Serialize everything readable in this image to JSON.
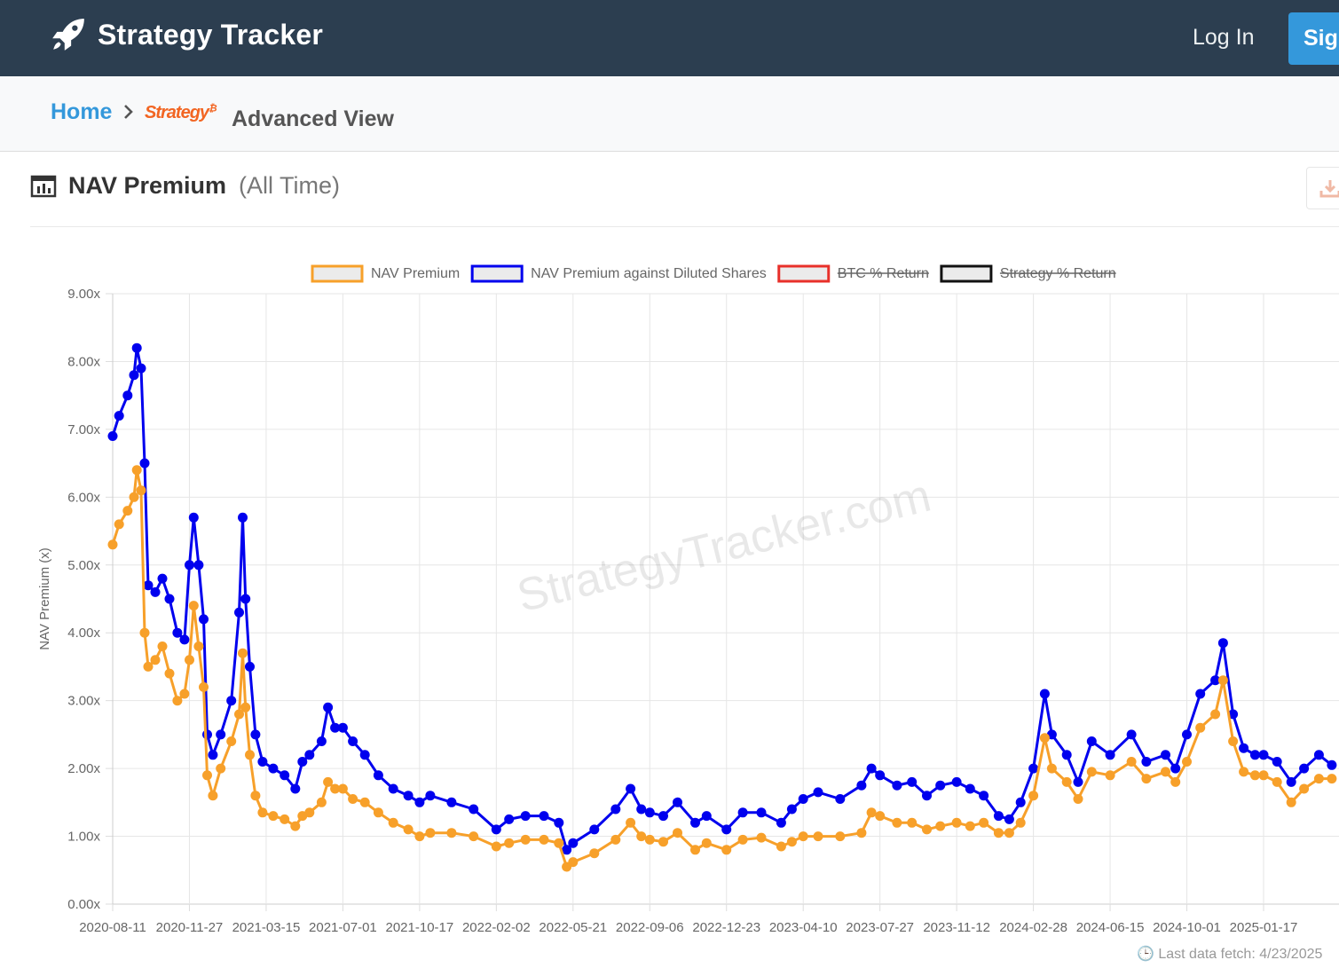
{
  "app": {
    "title": "Strategy Tracker",
    "logo_icon": "rocket-icon"
  },
  "nav": {
    "login_label": "Log In",
    "signup_label": "Sig"
  },
  "breadcrumb": {
    "home": "Home",
    "separator_icon": "chevron-right-icon",
    "logo_text": "Strategy",
    "logo_sup": "₿",
    "current": "Advanced View"
  },
  "card": {
    "title": "NAV Premium",
    "subtitle": "(All Time)",
    "title_icon": "bar-chart-icon",
    "export_icon": "download-icon"
  },
  "footer": {
    "last_fetch": "🕒 Last data fetch: 4/23/2025"
  },
  "colors": {
    "navbar": "#2c3e50",
    "accent": "#3498db",
    "nav": "#f7a02a",
    "diluted": "#0000ee",
    "btc": "#e8302a",
    "strategy": "#111111"
  },
  "chart_data": {
    "type": "line",
    "ylabel": "NAV Premium (x)",
    "ylim": [
      0,
      9
    ],
    "yticks": [
      "0.00x",
      "1.00x",
      "2.00x",
      "3.00x",
      "4.00x",
      "5.00x",
      "6.00x",
      "7.00x",
      "8.00x",
      "9.00x"
    ],
    "xticks": [
      "2020-08-11",
      "2020-11-27",
      "2021-03-15",
      "2021-07-01",
      "2021-10-17",
      "2022-02-02",
      "2022-05-21",
      "2022-09-06",
      "2022-12-23",
      "2023-04-10",
      "2023-07-27",
      "2023-11-12",
      "2024-02-28",
      "2024-06-15",
      "2024-10-01",
      "2025-01-17"
    ],
    "xrange": [
      "2020-08-11",
      "2025-04-23"
    ],
    "grid": true,
    "legend_position": "top",
    "watermark": "StrategyTracker.com",
    "legend": [
      {
        "name": "NAV Premium",
        "color": "#f7a02a",
        "hidden": false
      },
      {
        "name": "NAV Premium against Diluted Shares",
        "color": "#0000ee",
        "hidden": false
      },
      {
        "name": "BTC % Return",
        "color": "#e8302a",
        "hidden": true
      },
      {
        "name": "Strategy % Return",
        "color": "#111111",
        "hidden": true
      }
    ],
    "series": [
      {
        "name": "NAV Premium against Diluted Shares",
        "color": "#0000ee",
        "points": [
          [
            "2020-08-11",
            6.9
          ],
          [
            "2020-08-20",
            7.2
          ],
          [
            "2020-09-01",
            7.5
          ],
          [
            "2020-09-10",
            7.8
          ],
          [
            "2020-09-14",
            8.2
          ],
          [
            "2020-09-20",
            7.9
          ],
          [
            "2020-09-25",
            6.5
          ],
          [
            "2020-09-30",
            4.7
          ],
          [
            "2020-10-10",
            4.6
          ],
          [
            "2020-10-20",
            4.8
          ],
          [
            "2020-10-30",
            4.5
          ],
          [
            "2020-11-10",
            4.0
          ],
          [
            "2020-11-20",
            3.9
          ],
          [
            "2020-11-27",
            5.0
          ],
          [
            "2020-12-03",
            5.7
          ],
          [
            "2020-12-10",
            5.0
          ],
          [
            "2020-12-17",
            4.2
          ],
          [
            "2020-12-22",
            2.5
          ],
          [
            "2020-12-30",
            2.2
          ],
          [
            "2021-01-10",
            2.5
          ],
          [
            "2021-01-25",
            3.0
          ],
          [
            "2021-02-05",
            4.3
          ],
          [
            "2021-02-10",
            5.7
          ],
          [
            "2021-02-14",
            4.5
          ],
          [
            "2021-02-20",
            3.5
          ],
          [
            "2021-02-28",
            2.5
          ],
          [
            "2021-03-10",
            2.1
          ],
          [
            "2021-03-25",
            2.0
          ],
          [
            "2021-04-10",
            1.9
          ],
          [
            "2021-04-25",
            1.7
          ],
          [
            "2021-05-05",
            2.1
          ],
          [
            "2021-05-15",
            2.2
          ],
          [
            "2021-06-01",
            2.4
          ],
          [
            "2021-06-10",
            2.9
          ],
          [
            "2021-06-20",
            2.6
          ],
          [
            "2021-07-01",
            2.6
          ],
          [
            "2021-07-15",
            2.4
          ],
          [
            "2021-08-01",
            2.2
          ],
          [
            "2021-08-20",
            1.9
          ],
          [
            "2021-09-10",
            1.7
          ],
          [
            "2021-10-01",
            1.6
          ],
          [
            "2021-10-17",
            1.5
          ],
          [
            "2021-11-01",
            1.6
          ],
          [
            "2021-12-01",
            1.5
          ],
          [
            "2022-01-01",
            1.4
          ],
          [
            "2022-02-02",
            1.1
          ],
          [
            "2022-02-20",
            1.25
          ],
          [
            "2022-03-15",
            1.3
          ],
          [
            "2022-04-10",
            1.3
          ],
          [
            "2022-05-01",
            1.2
          ],
          [
            "2022-05-12",
            0.8
          ],
          [
            "2022-05-21",
            0.9
          ],
          [
            "2022-06-20",
            1.1
          ],
          [
            "2022-07-20",
            1.4
          ],
          [
            "2022-08-10",
            1.7
          ],
          [
            "2022-08-25",
            1.4
          ],
          [
            "2022-09-06",
            1.35
          ],
          [
            "2022-09-25",
            1.3
          ],
          [
            "2022-10-15",
            1.5
          ],
          [
            "2022-11-09",
            1.2
          ],
          [
            "2022-11-25",
            1.3
          ],
          [
            "2022-12-23",
            1.1
          ],
          [
            "2023-01-15",
            1.35
          ],
          [
            "2023-02-10",
            1.35
          ],
          [
            "2023-03-10",
            1.2
          ],
          [
            "2023-03-25",
            1.4
          ],
          [
            "2023-04-10",
            1.55
          ],
          [
            "2023-05-01",
            1.65
          ],
          [
            "2023-06-01",
            1.55
          ],
          [
            "2023-07-01",
            1.75
          ],
          [
            "2023-07-15",
            2.0
          ],
          [
            "2023-07-27",
            1.9
          ],
          [
            "2023-08-20",
            1.75
          ],
          [
            "2023-09-10",
            1.8
          ],
          [
            "2023-10-01",
            1.6
          ],
          [
            "2023-10-20",
            1.75
          ],
          [
            "2023-11-12",
            1.8
          ],
          [
            "2023-12-01",
            1.7
          ],
          [
            "2023-12-20",
            1.6
          ],
          [
            "2024-01-10",
            1.3
          ],
          [
            "2024-01-25",
            1.25
          ],
          [
            "2024-02-10",
            1.5
          ],
          [
            "2024-02-28",
            2.0
          ],
          [
            "2024-03-15",
            3.1
          ],
          [
            "2024-03-25",
            2.5
          ],
          [
            "2024-04-15",
            2.2
          ],
          [
            "2024-05-01",
            1.8
          ],
          [
            "2024-05-20",
            2.4
          ],
          [
            "2024-06-15",
            2.2
          ],
          [
            "2024-07-15",
            2.5
          ],
          [
            "2024-08-05",
            2.1
          ],
          [
            "2024-09-01",
            2.2
          ],
          [
            "2024-09-15",
            2.0
          ],
          [
            "2024-10-01",
            2.5
          ],
          [
            "2024-10-20",
            3.1
          ],
          [
            "2024-11-10",
            3.3
          ],
          [
            "2024-11-21",
            3.85
          ],
          [
            "2024-12-05",
            2.8
          ],
          [
            "2024-12-20",
            2.3
          ],
          [
            "2025-01-05",
            2.2
          ],
          [
            "2025-01-17",
            2.2
          ],
          [
            "2025-02-05",
            2.1
          ],
          [
            "2025-02-25",
            1.8
          ],
          [
            "2025-03-15",
            2.0
          ],
          [
            "2025-04-05",
            2.2
          ],
          [
            "2025-04-23",
            2.05
          ]
        ]
      },
      {
        "name": "NAV Premium",
        "color": "#f7a02a",
        "points": [
          [
            "2020-08-11",
            5.3
          ],
          [
            "2020-08-20",
            5.6
          ],
          [
            "2020-09-01",
            5.8
          ],
          [
            "2020-09-10",
            6.0
          ],
          [
            "2020-09-14",
            6.4
          ],
          [
            "2020-09-20",
            6.1
          ],
          [
            "2020-09-25",
            4.0
          ],
          [
            "2020-09-30",
            3.5
          ],
          [
            "2020-10-10",
            3.6
          ],
          [
            "2020-10-20",
            3.8
          ],
          [
            "2020-10-30",
            3.4
          ],
          [
            "2020-11-10",
            3.0
          ],
          [
            "2020-11-20",
            3.1
          ],
          [
            "2020-11-27",
            3.6
          ],
          [
            "2020-12-03",
            4.4
          ],
          [
            "2020-12-10",
            3.8
          ],
          [
            "2020-12-17",
            3.2
          ],
          [
            "2020-12-22",
            1.9
          ],
          [
            "2020-12-30",
            1.6
          ],
          [
            "2021-01-10",
            2.0
          ],
          [
            "2021-01-25",
            2.4
          ],
          [
            "2021-02-05",
            2.8
          ],
          [
            "2021-02-10",
            3.7
          ],
          [
            "2021-02-14",
            2.9
          ],
          [
            "2021-02-20",
            2.2
          ],
          [
            "2021-02-28",
            1.6
          ],
          [
            "2021-03-10",
            1.35
          ],
          [
            "2021-03-25",
            1.3
          ],
          [
            "2021-04-10",
            1.25
          ],
          [
            "2021-04-25",
            1.15
          ],
          [
            "2021-05-05",
            1.3
          ],
          [
            "2021-05-15",
            1.35
          ],
          [
            "2021-06-01",
            1.5
          ],
          [
            "2021-06-10",
            1.8
          ],
          [
            "2021-06-20",
            1.7
          ],
          [
            "2021-07-01",
            1.7
          ],
          [
            "2021-07-15",
            1.55
          ],
          [
            "2021-08-01",
            1.5
          ],
          [
            "2021-08-20",
            1.35
          ],
          [
            "2021-09-10",
            1.2
          ],
          [
            "2021-10-01",
            1.1
          ],
          [
            "2021-10-17",
            1.0
          ],
          [
            "2021-11-01",
            1.05
          ],
          [
            "2021-12-01",
            1.05
          ],
          [
            "2022-01-01",
            1.0
          ],
          [
            "2022-02-02",
            0.85
          ],
          [
            "2022-02-20",
            0.9
          ],
          [
            "2022-03-15",
            0.95
          ],
          [
            "2022-04-10",
            0.95
          ],
          [
            "2022-05-01",
            0.9
          ],
          [
            "2022-05-12",
            0.55
          ],
          [
            "2022-05-21",
            0.62
          ],
          [
            "2022-06-20",
            0.75
          ],
          [
            "2022-07-20",
            0.95
          ],
          [
            "2022-08-10",
            1.2
          ],
          [
            "2022-08-25",
            1.0
          ],
          [
            "2022-09-06",
            0.95
          ],
          [
            "2022-09-25",
            0.92
          ],
          [
            "2022-10-15",
            1.05
          ],
          [
            "2022-11-09",
            0.8
          ],
          [
            "2022-11-25",
            0.9
          ],
          [
            "2022-12-23",
            0.8
          ],
          [
            "2023-01-15",
            0.95
          ],
          [
            "2023-02-10",
            0.98
          ],
          [
            "2023-03-10",
            0.85
          ],
          [
            "2023-03-25",
            0.92
          ],
          [
            "2023-04-10",
            1.0
          ],
          [
            "2023-05-01",
            1.0
          ],
          [
            "2023-06-01",
            1.0
          ],
          [
            "2023-07-01",
            1.05
          ],
          [
            "2023-07-15",
            1.35
          ],
          [
            "2023-07-27",
            1.3
          ],
          [
            "2023-08-20",
            1.2
          ],
          [
            "2023-09-10",
            1.2
          ],
          [
            "2023-10-01",
            1.1
          ],
          [
            "2023-10-20",
            1.15
          ],
          [
            "2023-11-12",
            1.2
          ],
          [
            "2023-12-01",
            1.15
          ],
          [
            "2023-12-20",
            1.2
          ],
          [
            "2024-01-10",
            1.05
          ],
          [
            "2024-01-25",
            1.05
          ],
          [
            "2024-02-10",
            1.2
          ],
          [
            "2024-02-28",
            1.6
          ],
          [
            "2024-03-15",
            2.45
          ],
          [
            "2024-03-25",
            2.0
          ],
          [
            "2024-04-15",
            1.8
          ],
          [
            "2024-05-01",
            1.55
          ],
          [
            "2024-05-20",
            1.95
          ],
          [
            "2024-06-15",
            1.9
          ],
          [
            "2024-07-15",
            2.1
          ],
          [
            "2024-08-05",
            1.85
          ],
          [
            "2024-09-01",
            1.95
          ],
          [
            "2024-09-15",
            1.8
          ],
          [
            "2024-10-01",
            2.1
          ],
          [
            "2024-10-20",
            2.6
          ],
          [
            "2024-11-10",
            2.8
          ],
          [
            "2024-11-21",
            3.3
          ],
          [
            "2024-12-05",
            2.4
          ],
          [
            "2024-12-20",
            1.95
          ],
          [
            "2025-01-05",
            1.9
          ],
          [
            "2025-01-17",
            1.9
          ],
          [
            "2025-02-05",
            1.8
          ],
          [
            "2025-02-25",
            1.5
          ],
          [
            "2025-03-15",
            1.7
          ],
          [
            "2025-04-05",
            1.85
          ],
          [
            "2025-04-23",
            1.85
          ]
        ]
      }
    ]
  }
}
